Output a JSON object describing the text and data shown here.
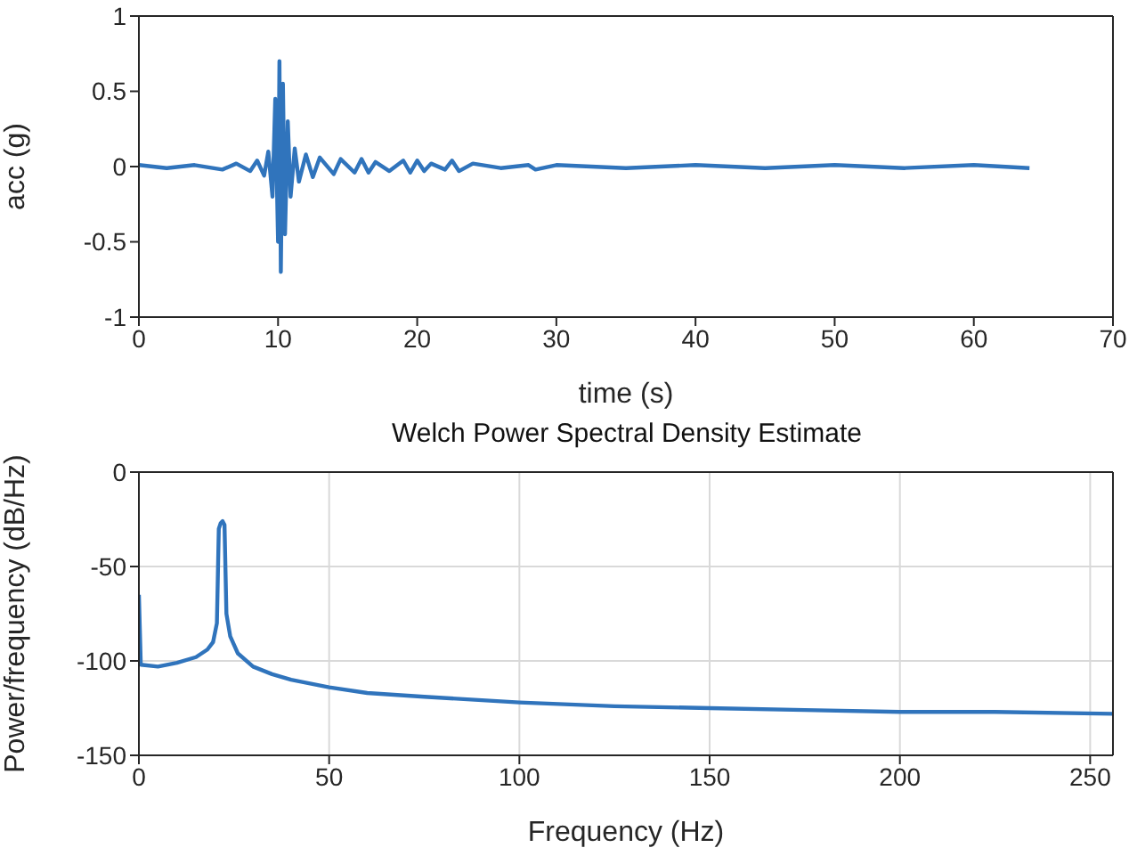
{
  "chart_data": [
    {
      "type": "line",
      "xlabel": "time (s)",
      "ylabel": "acc (g)",
      "xlim": [
        0,
        70
      ],
      "xticks": [
        0,
        10,
        20,
        30,
        40,
        50,
        60,
        70
      ],
      "ylim": [
        -1,
        1
      ],
      "yticks": [
        -1,
        -0.5,
        0,
        0.5,
        1
      ],
      "grid": false,
      "marker": "none",
      "line_style": "solid",
      "series": [
        {
          "color": "#3074bc",
          "x": [
            0,
            2,
            4,
            6,
            7,
            8,
            8.5,
            9,
            9.3,
            9.6,
            9.8,
            10,
            10.1,
            10.2,
            10.35,
            10.5,
            10.7,
            10.9,
            11.2,
            11.5,
            12,
            12.5,
            13,
            14,
            14.5,
            15.5,
            16,
            16.5,
            17,
            18,
            19,
            19.5,
            20,
            20.5,
            21,
            22,
            22.5,
            23,
            24,
            26,
            28,
            28.5,
            30,
            35,
            40,
            45,
            50,
            55,
            60,
            64
          ],
          "values": [
            0.01,
            -0.01,
            0.01,
            -0.02,
            0.02,
            -0.03,
            0.04,
            -0.06,
            0.1,
            -0.2,
            0.45,
            -0.5,
            0.7,
            -0.7,
            0.55,
            -0.45,
            0.3,
            -0.2,
            0.12,
            -0.1,
            0.08,
            -0.07,
            0.06,
            -0.05,
            0.05,
            -0.04,
            0.05,
            -0.04,
            0.03,
            -0.03,
            0.04,
            -0.04,
            0.04,
            -0.03,
            0.02,
            -0.02,
            0.04,
            -0.03,
            0.02,
            -0.01,
            0.01,
            -0.02,
            0.01,
            -0.01,
            0.01,
            -0.01,
            0.01,
            -0.01,
            0.01,
            -0.01
          ]
        }
      ]
    },
    {
      "type": "line",
      "title": "Welch Power Spectral Density Estimate",
      "xlabel": "Frequency (Hz)",
      "ylabel": "Power/frequency (dB/Hz)",
      "xlim": [
        0,
        256
      ],
      "xticks": [
        0,
        50,
        100,
        150,
        200,
        250
      ],
      "ylim": [
        -150,
        0
      ],
      "yticks": [
        -150,
        -100,
        -50,
        0
      ],
      "grid": true,
      "marker": "none",
      "line_style": "solid",
      "series": [
        {
          "color": "#3074bc",
          "x": [
            0,
            0.5,
            5,
            10,
            15,
            18,
            19.5,
            20.5,
            21,
            21.5,
            22,
            22.5,
            23,
            24,
            26,
            30,
            35,
            40,
            50,
            60,
            75,
            100,
            125,
            150,
            175,
            200,
            225,
            256
          ],
          "values": [
            -65,
            -102,
            -103,
            -101,
            -98,
            -94,
            -90,
            -80,
            -30,
            -27,
            -26,
            -28,
            -75,
            -87,
            -96,
            -103,
            -107,
            -110,
            -114,
            -117,
            -119,
            -122,
            -124,
            -125,
            -126,
            -127,
            -127,
            -128
          ]
        }
      ]
    }
  ]
}
